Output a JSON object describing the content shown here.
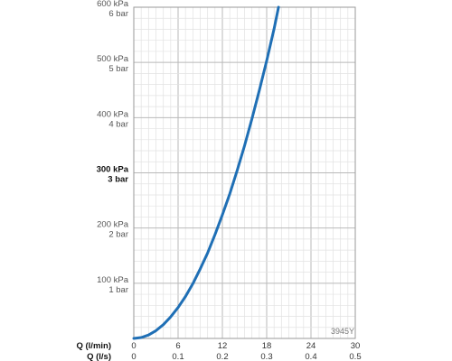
{
  "chart_data": {
    "type": "line",
    "code": "3945Y",
    "x_axis_primary": {
      "label": "Q (l/min)",
      "ticks": [
        "0",
        "6",
        "12",
        "18",
        "24",
        "30"
      ],
      "values": [
        0,
        6,
        12,
        18,
        24,
        30
      ],
      "range": [
        0,
        30
      ]
    },
    "x_axis_secondary": {
      "label": "Q (l/s)",
      "ticks": [
        "0",
        "0.1",
        "0.2",
        "0.3",
        "0.4",
        "0.5"
      ]
    },
    "y_axis": {
      "range_kpa": [
        0,
        600
      ],
      "ticks": [
        {
          "value": 100,
          "kpa": "100 kPa",
          "bar": "1 bar",
          "bold": false
        },
        {
          "value": 200,
          "kpa": "200 kPa",
          "bar": "2 bar",
          "bold": false
        },
        {
          "value": 300,
          "kpa": "300 kPa",
          "bar": "3 bar",
          "bold": true
        },
        {
          "value": 400,
          "kpa": "400 kPa",
          "bar": "4 bar",
          "bold": false
        },
        {
          "value": 500,
          "kpa": "500 kPa",
          "bar": "5 bar",
          "bold": false
        },
        {
          "value": 600,
          "kpa": "600 kPa",
          "bar": "6 bar",
          "bold": false
        }
      ]
    },
    "grid": true,
    "series": [
      {
        "color": "#1f6fb5",
        "x": [
          0,
          1,
          2,
          3,
          4,
          5,
          6,
          7,
          8,
          9,
          10,
          11,
          12,
          13,
          14,
          15,
          16,
          17,
          18,
          19,
          19.6
        ],
        "y": [
          0,
          1.6,
          6.2,
          14,
          25,
          39,
          56,
          76,
          99,
          126,
          155,
          188,
          224,
          262,
          304,
          349,
          398,
          449,
          503,
          561,
          600
        ]
      }
    ]
  }
}
